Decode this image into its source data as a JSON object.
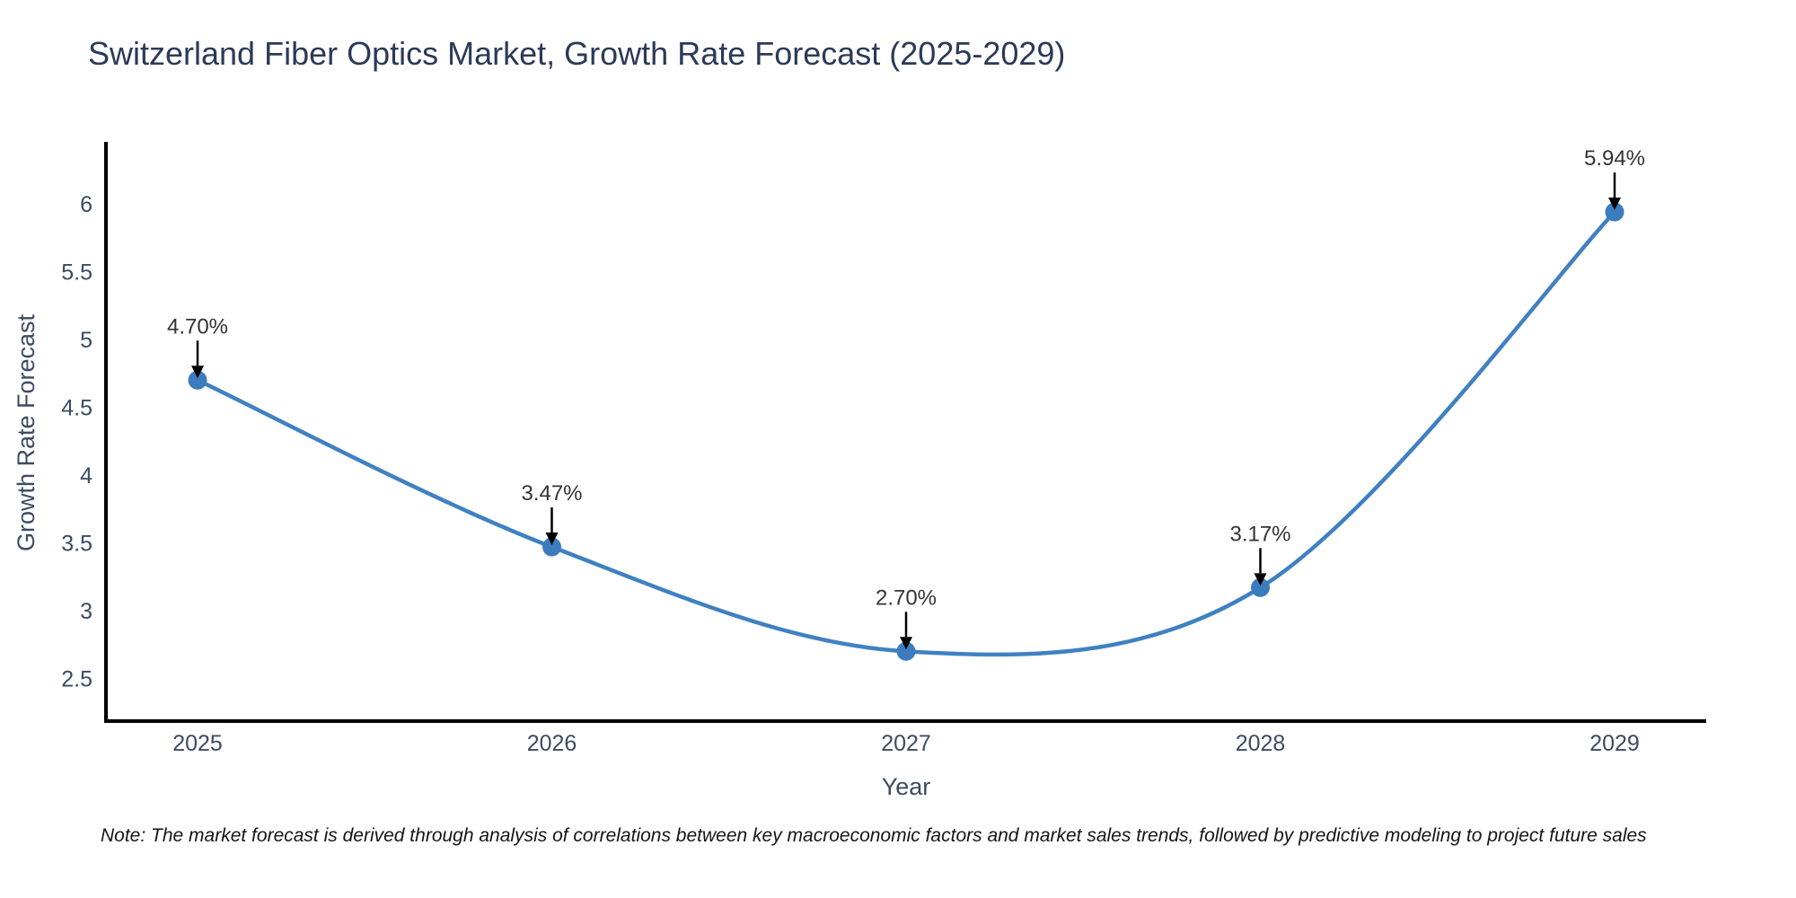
{
  "title": "Switzerland Fiber Optics Market, Growth Rate Forecast (2025-2029)",
  "note": "Note: The market forecast is derived through analysis of correlations between key macroeconomic factors and market sales trends, followed by predictive modeling to project future sales",
  "chart_data": {
    "type": "line",
    "title": "Switzerland Fiber Optics Market, Growth Rate Forecast (2025-2029)",
    "xlabel": "Year",
    "ylabel": "Growth Rate Forecast",
    "categories": [
      "2025",
      "2026",
      "2027",
      "2028",
      "2029"
    ],
    "values": [
      4.7,
      3.47,
      2.7,
      3.17,
      5.94
    ],
    "point_labels": [
      "4.70%",
      "3.47%",
      "2.70%",
      "3.17%",
      "5.94%"
    ],
    "yticks": [
      2.5,
      3,
      3.5,
      4,
      4.5,
      5,
      5.5,
      6
    ],
    "ylim": [
      2.2,
      6.45
    ],
    "grid": false,
    "legend_position": "none",
    "curve": "spline",
    "colors": {
      "line": "#3f81c1",
      "marker": "#3b7cbe",
      "spine": "#000000",
      "arrow": "#000000",
      "tick_label": "#3d4a63",
      "annotation_text": "#333333",
      "title_text": "#2c3a58"
    }
  }
}
